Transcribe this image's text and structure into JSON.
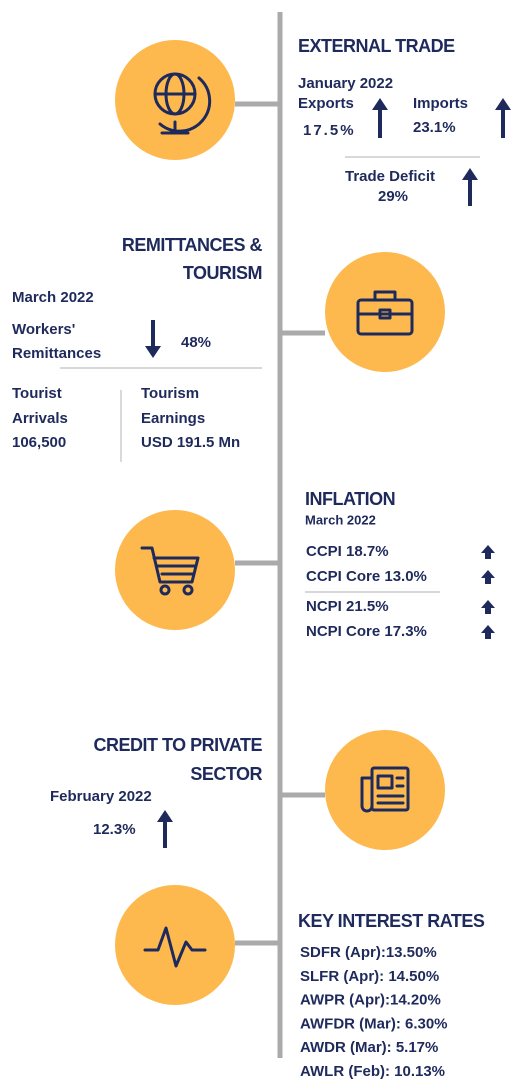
{
  "external_trade": {
    "title": "EXTERNAL TRADE",
    "period": "January 2022",
    "exports_label": "Exports",
    "exports_value": "17.5%",
    "imports_label": "Imports",
    "imports_value": "23.1%",
    "deficit_label": "Trade Deficit",
    "deficit_value": "29%"
  },
  "remittances": {
    "title": [
      "REMITTANCES &",
      "TOURISM"
    ],
    "period": "March 2022",
    "workers_label": [
      "Workers'",
      "Remittances"
    ],
    "workers_value": "48%",
    "arrivals_label": [
      "Tourist",
      "Arrivals"
    ],
    "arrivals_value": "106,500",
    "earnings_label": [
      "Tourism",
      "Earnings"
    ],
    "earnings_value": "USD 191.5 Mn"
  },
  "inflation": {
    "title": "INFLATION",
    "period": "March 2022",
    "items": [
      "CCPI 18.7%",
      "CCPI Core 13.0%",
      "NCPI 21.5%",
      "NCPI Core 17.3%"
    ]
  },
  "credit": {
    "title": [
      "CREDIT TO PRIVATE",
      "SECTOR"
    ],
    "period": "February 2022",
    "value": "12.3%"
  },
  "interest_rates": {
    "title": "KEY INTEREST RATES",
    "items": [
      "SDFR (Apr):13.50%",
      "SLFR (Apr): 14.50%",
      "AWPR (Apr):14.20%",
      "AWFDR (Mar): 6.30%",
      "AWDR (Mar): 5.17%",
      "AWLR (Feb): 10.13%"
    ]
  }
}
